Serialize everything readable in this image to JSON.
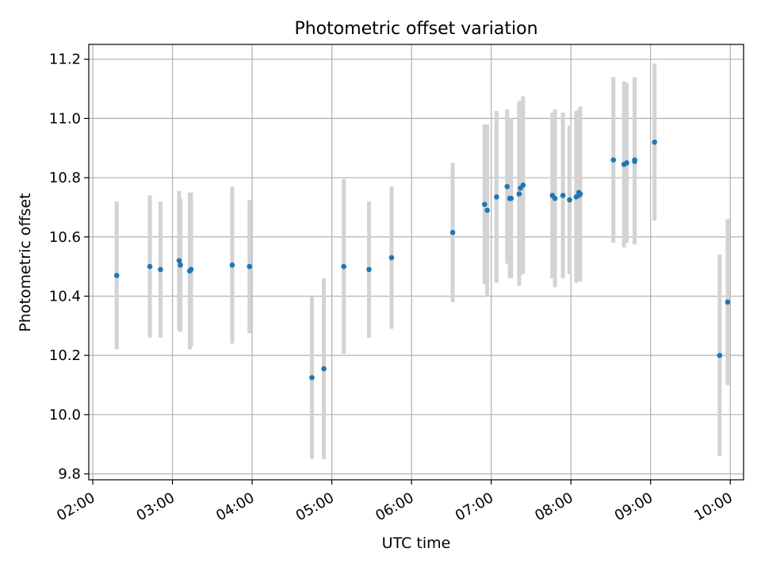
{
  "chart_data": {
    "type": "scatter",
    "title": "Photometric offset variation",
    "xlabel": "UTC time",
    "ylabel": "Photometric offset",
    "x_tick_labels": [
      "02:00",
      "03:00",
      "04:00",
      "05:00",
      "06:00",
      "07:00",
      "08:00",
      "09:00",
      "10:00"
    ],
    "y_tick_labels": [
      "9.8",
      "10.0",
      "10.2",
      "10.4",
      "10.6",
      "10.8",
      "11.0",
      "11.2"
    ],
    "x_ticks_hours": [
      2,
      3,
      4,
      5,
      6,
      7,
      8,
      9,
      10
    ],
    "y_ticks": [
      9.8,
      10.0,
      10.2,
      10.4,
      10.6,
      10.8,
      11.0,
      11.2
    ],
    "xlim": [
      "01:57",
      "10:10"
    ],
    "ylim": [
      9.78,
      11.25
    ],
    "grid": true,
    "colors": {
      "point": "#1f77b4",
      "errorbar": "#d3d3d3",
      "grid": "#b0b0b0"
    },
    "points": [
      {
        "x": "02:18",
        "y": 10.47,
        "err": 0.25
      },
      {
        "x": "02:43",
        "y": 10.5,
        "err": 0.24
      },
      {
        "x": "02:51",
        "y": 10.49,
        "err": 0.23
      },
      {
        "x": "03:05",
        "y": 10.52,
        "err": 0.235
      },
      {
        "x": "03:06",
        "y": 10.505,
        "err": 0.225
      },
      {
        "x": "03:13",
        "y": 10.485,
        "err": 0.265
      },
      {
        "x": "03:14",
        "y": 10.49,
        "err": 0.26
      },
      {
        "x": "03:45",
        "y": 10.505,
        "err": 0.265
      },
      {
        "x": "03:58",
        "y": 10.5,
        "err": 0.225
      },
      {
        "x": "04:45",
        "y": 10.125,
        "err": 0.275
      },
      {
        "x": "04:54",
        "y": 10.155,
        "err": 0.305
      },
      {
        "x": "05:09",
        "y": 10.5,
        "err": 0.295
      },
      {
        "x": "05:28",
        "y": 10.49,
        "err": 0.23
      },
      {
        "x": "05:45",
        "y": 10.53,
        "err": 0.24
      },
      {
        "x": "06:31",
        "y": 10.615,
        "err": 0.235
      },
      {
        "x": "06:55",
        "y": 10.71,
        "err": 0.27
      },
      {
        "x": "06:57",
        "y": 10.69,
        "err": 0.29
      },
      {
        "x": "07:04",
        "y": 10.735,
        "err": 0.29
      },
      {
        "x": "07:12",
        "y": 10.77,
        "err": 0.26
      },
      {
        "x": "07:14",
        "y": 10.73,
        "err": 0.27
      },
      {
        "x": "07:15",
        "y": 10.73,
        "err": 0.27
      },
      {
        "x": "07:21",
        "y": 10.745,
        "err": 0.31
      },
      {
        "x": "07:22",
        "y": 10.765,
        "err": 0.295
      },
      {
        "x": "07:24",
        "y": 10.775,
        "err": 0.3
      },
      {
        "x": "07:46",
        "y": 10.74,
        "err": 0.28
      },
      {
        "x": "07:48",
        "y": 10.73,
        "err": 0.3
      },
      {
        "x": "07:54",
        "y": 10.74,
        "err": 0.28
      },
      {
        "x": "07:59",
        "y": 10.725,
        "err": 0.25
      },
      {
        "x": "08:04",
        "y": 10.735,
        "err": 0.29
      },
      {
        "x": "08:06",
        "y": 10.74,
        "err": 0.29
      },
      {
        "x": "08:06",
        "y": 10.75,
        "err": 0.275
      },
      {
        "x": "08:07",
        "y": 10.745,
        "err": 0.295
      },
      {
        "x": "08:32",
        "y": 10.86,
        "err": 0.28
      },
      {
        "x": "08:40",
        "y": 10.845,
        "err": 0.28
      },
      {
        "x": "08:42",
        "y": 10.85,
        "err": 0.27
      },
      {
        "x": "08:48",
        "y": 10.86,
        "err": 0.28
      },
      {
        "x": "08:48",
        "y": 10.855,
        "err": 0.28
      },
      {
        "x": "09:03",
        "y": 10.92,
        "err": 0.265
      },
      {
        "x": "09:52",
        "y": 10.2,
        "err": 0.34
      },
      {
        "x": "09:58",
        "y": 10.38,
        "err": 0.28
      }
    ]
  }
}
